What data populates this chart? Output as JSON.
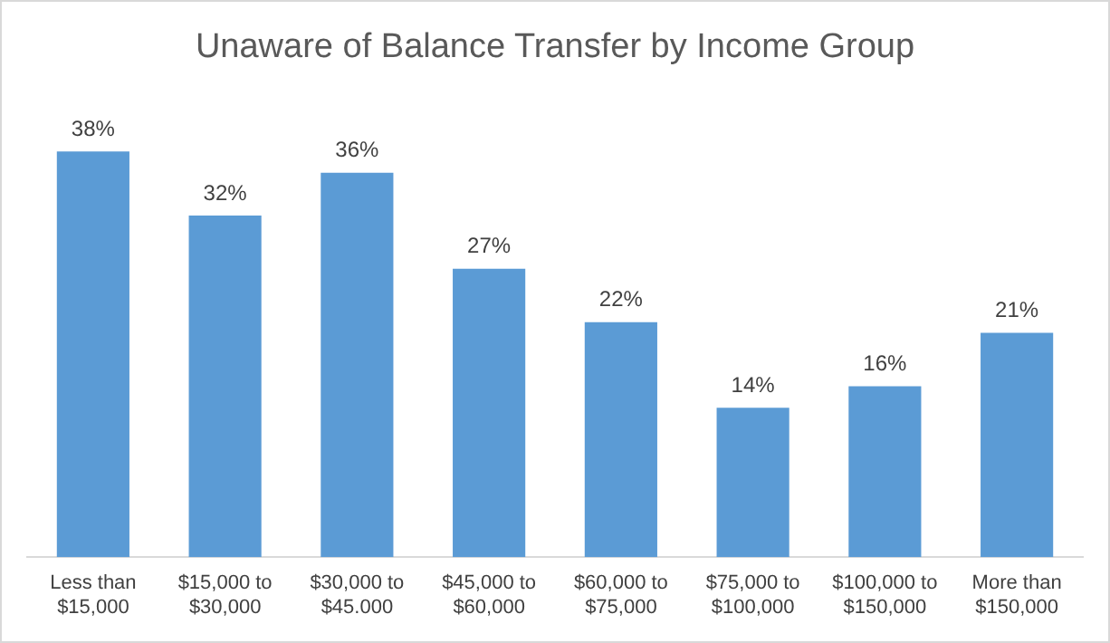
{
  "chart_data": {
    "type": "bar",
    "title": "Unaware of Balance Transfer by Income Group",
    "categories": [
      "Less than $15,000",
      "$15,000 to $30,000",
      "$30,000 to $45.000",
      "$45,000 to $60,000",
      "$60,000 to $75,000",
      "$75,000 to $100,000",
      "$100,000 to $150,000",
      "More than $150,000"
    ],
    "values": [
      38,
      32,
      36,
      27,
      22,
      14,
      16,
      21
    ],
    "value_labels": [
      "38%",
      "32%",
      "36%",
      "27%",
      "22%",
      "14%",
      "16%",
      "21%"
    ],
    "color": "#5b9bd5",
    "grid": false,
    "legend": false,
    "tick_labels": "x"
  }
}
